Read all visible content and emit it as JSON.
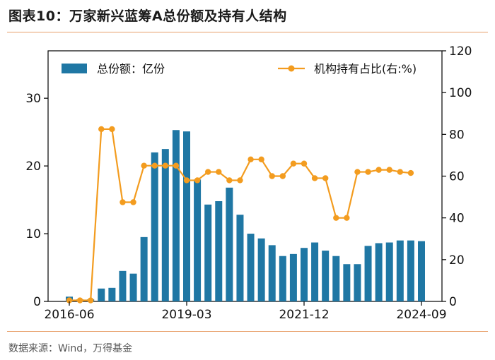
{
  "title": "图表10：万家新兴蓝筹A总份额及持有人结构",
  "source": "数据来源：Wind，万得基金",
  "chart_data": {
    "type": "bar+line",
    "legend_placement": "top",
    "grid": false,
    "x_tick_labels": [
      "2016-06",
      "2019-03",
      "2021-12",
      "2024-09"
    ],
    "x_tick_indices": [
      0,
      11,
      22,
      33
    ],
    "left_axis": {
      "ylim": [
        0,
        37
      ],
      "ticks": [
        0,
        10,
        20,
        30
      ]
    },
    "right_axis": {
      "ylim": [
        0,
        120
      ],
      "ticks": [
        0,
        20,
        40,
        60,
        80,
        100,
        120
      ]
    },
    "series": [
      {
        "name": "总份额：亿份",
        "type": "bar",
        "axis": "left",
        "color": "#1f77a4",
        "values": [
          0.7,
          0.3,
          0.3,
          1.9,
          2.0,
          4.5,
          4.1,
          9.5,
          22.0,
          22.5,
          25.3,
          25.1,
          18.0,
          14.3,
          14.8,
          16.8,
          12.8,
          10.0,
          9.3,
          8.3,
          6.7,
          7.0,
          7.9,
          8.7,
          7.5,
          6.7,
          5.5,
          5.5,
          8.2,
          8.6,
          8.7,
          9.0,
          9.0,
          8.9
        ]
      },
      {
        "name": "机构持有占比(右:%)",
        "type": "line",
        "axis": "right",
        "color": "#f39c1f",
        "values": [
          0.5,
          0.5,
          0.5,
          82.5,
          82.5,
          47.5,
          47.5,
          65.0,
          65.0,
          65.0,
          65.0,
          58.0,
          58.0,
          62.0,
          62.0,
          58.0,
          58.0,
          68.0,
          68.0,
          60.0,
          60.0,
          66.0,
          66.0,
          59.0,
          59.0,
          40.0,
          40.0,
          62.0,
          62.0,
          63.0,
          63.0,
          62.0,
          61.5,
          null
        ]
      }
    ]
  }
}
